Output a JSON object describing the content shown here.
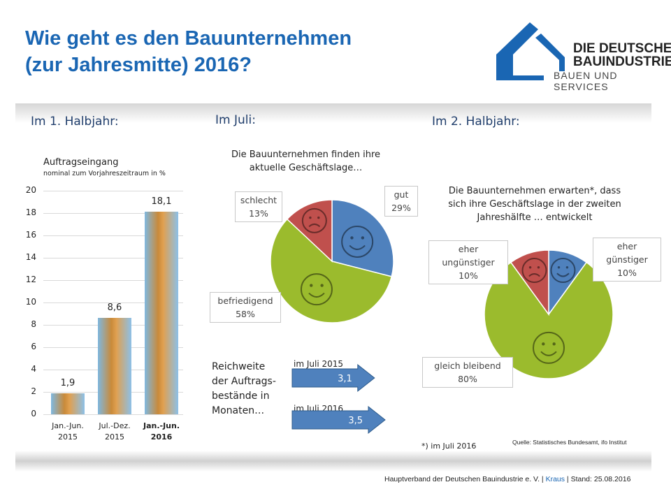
{
  "title": [
    "Wie geht es den Bauunternehmen",
    "(zur Jahresmitte) 2016?"
  ],
  "logo": {
    "line1": "DIE DEUTSCHE",
    "line2": "BAUINDUSTRIE",
    "line3": "BAUEN UND SERVICES"
  },
  "sections": {
    "s1": "Im 1. Halbjahr:",
    "s2": "Im Juli:",
    "s3": "Im 2. Halbjahr:"
  },
  "colors": {
    "blue": "#4f81bd",
    "green": "#9bbb2d",
    "red": "#c0504d",
    "title": "#1a66b3"
  },
  "chart_data": [
    {
      "type": "bar",
      "title": "Auftragseingang",
      "subtitle": "nominal zum Vorjahreszeitraum in %",
      "categories": [
        [
          "Jan.-Jun.",
          "2015"
        ],
        [
          "Jul.-Dez.",
          "2015"
        ],
        [
          "Jan.-Jun.",
          "2016"
        ]
      ],
      "values": [
        1.9,
        8.6,
        18.1
      ],
      "labels": [
        "1,9",
        "8,6",
        "18,1"
      ],
      "ylim": [
        0,
        20
      ],
      "yticks": [
        "0",
        "2",
        "4",
        "6",
        "8",
        "10",
        "12",
        "14",
        "16",
        "18",
        "20"
      ]
    },
    {
      "type": "pie",
      "title": "Die Bauunternehmen  finden ihre aktuelle Geschäftslage…",
      "slices": [
        {
          "name": "gut",
          "value": 29,
          "label": "29%",
          "color": "#4f81bd"
        },
        {
          "name": "befriedigend",
          "value": 58,
          "label": "58%",
          "color": "#9bbb2d"
        },
        {
          "name": "schlecht",
          "value": 13,
          "label": "13%",
          "color": "#c0504d"
        }
      ]
    },
    {
      "type": "pie",
      "title": "Die Bauunternehmen  erwarten*, dass sich ihre Geschäftslage in der zweiten Jahreshälfte … entwickelt",
      "slices": [
        {
          "name": "eher günstiger",
          "value": 10,
          "label": "10%",
          "color": "#4f81bd"
        },
        {
          "name": "gleich bleibend",
          "value": 80,
          "label": "80%",
          "color": "#9bbb2d"
        },
        {
          "name": "eher ungünstiger",
          "value": 10,
          "label": "10%",
          "color": "#c0504d"
        }
      ]
    },
    {
      "type": "bar",
      "title": "Reichweite der Auftrags- bestände in Monaten…",
      "categories": [
        "im Juli 2015",
        "im Juli 2016"
      ],
      "values": [
        3.1,
        3.5
      ],
      "labels": [
        "3,1",
        "3,5"
      ]
    }
  ],
  "pie1_title": [
    "Die Bauunternehmen  finden ihre",
    "aktuelle Geschäftslage…"
  ],
  "pie2_title": [
    "Die Bauunternehmen  erwarten*, dass",
    "sich ihre Geschäftslage in der zweiten",
    "Jahreshälfte … entwickelt"
  ],
  "callouts": {
    "gut": [
      "gut",
      "29%"
    ],
    "schlecht": [
      "schlecht",
      "13%"
    ],
    "befr": [
      "befriedigend",
      "58%"
    ],
    "eg": [
      "eher",
      "günstiger",
      "10%"
    ],
    "eu": [
      "eher",
      "ungünstiger",
      "10%"
    ],
    "gb": [
      "gleich bleibend",
      "80%"
    ]
  },
  "reichweite": [
    "Reichweite",
    "der Auftrags-",
    "bestände in",
    "Monaten…"
  ],
  "footnote": "*)  im Juli 2016",
  "source": "Quelle: Statistisches Bundesamt, ifo Institut",
  "footer": {
    "org": "Hauptverband der Deutschen Bauindustrie e. V.",
    "sep1": " | ",
    "author": "Kraus",
    "sep2": " | ",
    "stand": "Stand: 25.08.2016"
  }
}
